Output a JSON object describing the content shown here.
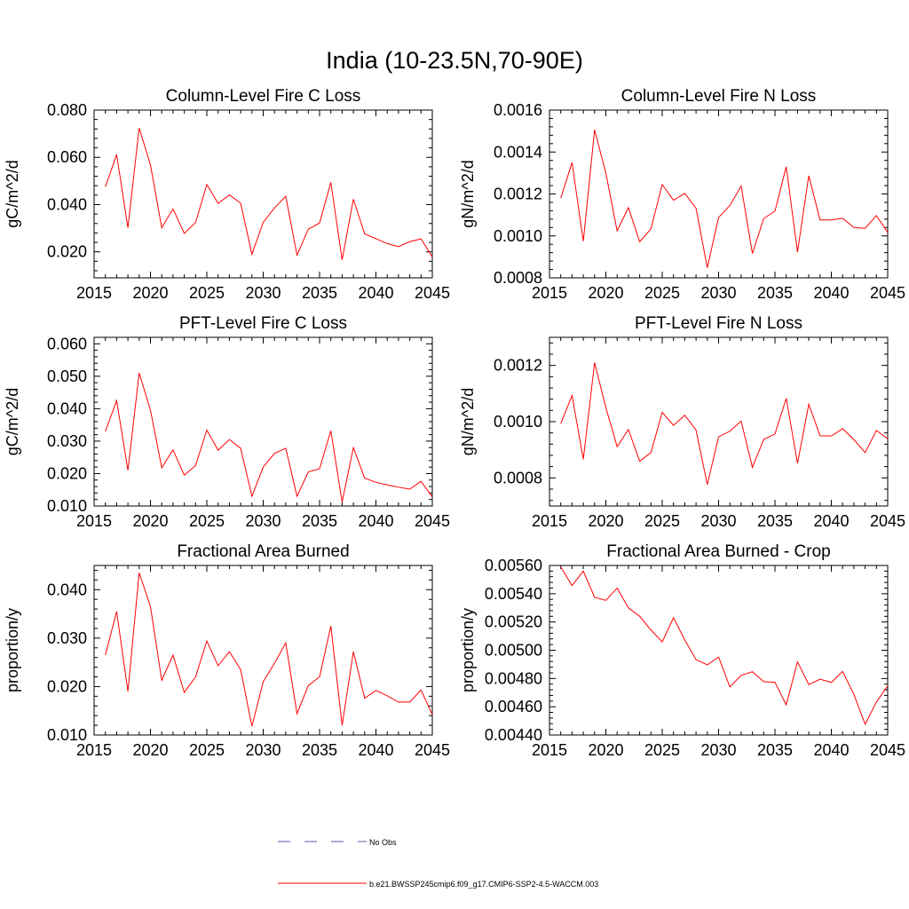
{
  "figure": {
    "title": "India (10-23.5N,70-90E)"
  },
  "legend": [
    {
      "label": "No Obs",
      "color": "#5a5aa8",
      "dash": true
    },
    {
      "label": "b.e21.BWSSP245cmip6.f09_g17.CMIP6-SSP2-4.5-WACCM.003",
      "color": "#ff0000",
      "dash": false
    }
  ],
  "chart_data": [
    {
      "type": "line",
      "title": "Column-Level Fire C Loss",
      "ylabel": "gC/m^2/d",
      "xlim": [
        2015,
        2045
      ],
      "ylim": [
        0.009,
        0.08
      ],
      "xticks": [
        "2015",
        "2020",
        "2025",
        "2030",
        "2035",
        "2040",
        "2045"
      ],
      "yticks": [
        "0.020",
        "0.040",
        "0.060",
        "0.080"
      ],
      "x": [
        2016,
        2017,
        2018,
        2019,
        2020,
        2021,
        2022,
        2023,
        2024,
        2025,
        2026,
        2027,
        2028,
        2029,
        2030,
        2031,
        2032,
        2033,
        2034,
        2035,
        2036,
        2037,
        2038,
        2039,
        2040,
        2041,
        2042,
        2043,
        2044,
        2045
      ],
      "series": [
        {
          "color": "#ff0000",
          "values": [
            0.0475,
            0.0612,
            0.0302,
            0.0724,
            0.0568,
            0.0302,
            0.0382,
            0.0278,
            0.0324,
            0.0485,
            0.0405,
            0.0441,
            0.0406,
            0.019,
            0.0325,
            0.0386,
            0.0435,
            0.0186,
            0.0296,
            0.0322,
            0.0494,
            0.0166,
            0.0423,
            0.0276,
            0.0256,
            0.0235,
            0.0222,
            0.0243,
            0.0255,
            0.0178
          ]
        }
      ]
    },
    {
      "type": "line",
      "title": "Column-Level Fire N Loss",
      "ylabel": "gN/m^2/d",
      "xlim": [
        2015,
        2045
      ],
      "ylim": [
        0.0008,
        0.0016
      ],
      "xticks": [
        "2015",
        "2020",
        "2025",
        "2030",
        "2035",
        "2040",
        "2045"
      ],
      "yticks": [
        "0.0008",
        "0.0010",
        "0.0012",
        "0.0014",
        "0.0016"
      ],
      "x": [
        2016,
        2017,
        2018,
        2019,
        2020,
        2021,
        2022,
        2023,
        2024,
        2025,
        2026,
        2027,
        2028,
        2029,
        2030,
        2031,
        2032,
        2033,
        2034,
        2035,
        2036,
        2037,
        2038,
        2039,
        2040,
        2041,
        2042,
        2043,
        2044,
        2045
      ],
      "series": [
        {
          "color": "#ff0000",
          "values": [
            0.00118,
            0.00135,
            0.000975,
            0.001506,
            0.0013,
            0.001024,
            0.001135,
            0.000972,
            0.001034,
            0.001245,
            0.00117,
            0.001203,
            0.001132,
            0.000848,
            0.001088,
            0.001145,
            0.001238,
            0.000916,
            0.001083,
            0.001118,
            0.00133,
            0.000923,
            0.001287,
            0.001076,
            0.001076,
            0.001084,
            0.00104,
            0.001036,
            0.001097,
            0.001016
          ]
        }
      ]
    },
    {
      "type": "line",
      "title": "PFT-Level Fire C Loss",
      "ylabel": "gC/m^2/d",
      "xlim": [
        2015,
        2045
      ],
      "ylim": [
        0.01,
        0.062
      ],
      "xticks": [
        "2015",
        "2020",
        "2025",
        "2030",
        "2035",
        "2040",
        "2045"
      ],
      "yticks": [
        "0.010",
        "0.020",
        "0.030",
        "0.040",
        "0.050",
        "0.060"
      ],
      "x": [
        2016,
        2017,
        2018,
        2019,
        2020,
        2021,
        2022,
        2023,
        2024,
        2025,
        2026,
        2027,
        2028,
        2029,
        2030,
        2031,
        2032,
        2033,
        2034,
        2035,
        2036,
        2037,
        2038,
        2039,
        2040,
        2041,
        2042,
        2043,
        2044,
        2045
      ],
      "series": [
        {
          "color": "#ff0000",
          "values": [
            0.033,
            0.0425,
            0.021,
            0.051,
            0.0395,
            0.0218,
            0.0273,
            0.0195,
            0.0225,
            0.0334,
            0.0272,
            0.0305,
            0.0278,
            0.013,
            0.022,
            0.0262,
            0.0278,
            0.013,
            0.0205,
            0.0215,
            0.0332,
            0.0112,
            0.028,
            0.0186,
            0.0173,
            0.0165,
            0.0158,
            0.0152,
            0.0176,
            0.0128
          ]
        }
      ]
    },
    {
      "type": "line",
      "title": "PFT-Level Fire N Loss",
      "ylabel": "gN/m^2/d",
      "xlim": [
        2015,
        2045
      ],
      "ylim": [
        0.0007,
        0.0013
      ],
      "xticks": [
        "2015",
        "2020",
        "2025",
        "2030",
        "2035",
        "2040",
        "2045"
      ],
      "yticks": [
        "0.0008",
        "0.0010",
        "0.0012"
      ],
      "x": [
        2016,
        2017,
        2018,
        2019,
        2020,
        2021,
        2022,
        2023,
        2024,
        2025,
        2026,
        2027,
        2028,
        2029,
        2030,
        2031,
        2032,
        2033,
        2034,
        2035,
        2036,
        2037,
        2038,
        2039,
        2040,
        2041,
        2042,
        2043,
        2044,
        2045
      ],
      "series": [
        {
          "color": "#ff0000",
          "values": [
            0.000993,
            0.001093,
            0.000866,
            0.00121,
            0.00105,
            0.000911,
            0.000972,
            0.000859,
            0.00089,
            0.001033,
            0.000987,
            0.001023,
            0.00097,
            0.000776,
            0.000946,
            0.000966,
            0.001002,
            0.000837,
            0.000937,
            0.000956,
            0.001083,
            0.000852,
            0.001062,
            0.00095,
            0.000949,
            0.000975,
            0.000936,
            0.00089,
            0.000969,
            0.000939
          ]
        }
      ]
    },
    {
      "type": "line",
      "title": "Fractional Area Burned",
      "ylabel": "proportion/y",
      "xlim": [
        2015,
        2045
      ],
      "ylim": [
        0.01,
        0.045
      ],
      "xticks": [
        "2015",
        "2020",
        "2025",
        "2030",
        "2035",
        "2040",
        "2045"
      ],
      "yticks": [
        "0.010",
        "0.020",
        "0.030",
        "0.040"
      ],
      "x": [
        2016,
        2017,
        2018,
        2019,
        2020,
        2021,
        2022,
        2023,
        2024,
        2025,
        2026,
        2027,
        2028,
        2029,
        2030,
        2031,
        2032,
        2033,
        2034,
        2035,
        2036,
        2037,
        2038,
        2039,
        2040,
        2041,
        2042,
        2043,
        2044,
        2045
      ],
      "series": [
        {
          "color": "#ff0000",
          "values": [
            0.0265,
            0.0355,
            0.019,
            0.0435,
            0.0365,
            0.0213,
            0.0265,
            0.0188,
            0.022,
            0.0294,
            0.0243,
            0.0272,
            0.0235,
            0.0118,
            0.021,
            0.0248,
            0.029,
            0.0144,
            0.0202,
            0.022,
            0.0325,
            0.012,
            0.0272,
            0.0176,
            0.0192,
            0.0181,
            0.0168,
            0.0168,
            0.0193,
            0.0142
          ]
        }
      ]
    },
    {
      "type": "line",
      "title": "Fractional Area Burned - Crop",
      "ylabel": "proportion/y",
      "xlim": [
        2015,
        2045
      ],
      "ylim": [
        0.0044,
        0.0056
      ],
      "xticks": [
        "2015",
        "2020",
        "2025",
        "2030",
        "2035",
        "2040",
        "2045"
      ],
      "yticks": [
        "0.00440",
        "0.00460",
        "0.00480",
        "0.00500",
        "0.00520",
        "0.00540",
        "0.00560"
      ],
      "x": [
        2016,
        2017,
        2018,
        2019,
        2020,
        2021,
        2022,
        2023,
        2024,
        2025,
        2026,
        2027,
        2028,
        2029,
        2030,
        2031,
        2032,
        2033,
        2034,
        2035,
        2036,
        2037,
        2038,
        2039,
        2040,
        2041,
        2042,
        2043,
        2044,
        2045
      ],
      "series": [
        {
          "color": "#ff0000",
          "values": [
            0.00559,
            0.005458,
            0.00556,
            0.005375,
            0.005353,
            0.00544,
            0.0053,
            0.00524,
            0.005143,
            0.00506,
            0.00523,
            0.005073,
            0.004933,
            0.004897,
            0.004952,
            0.00474,
            0.004822,
            0.004848,
            0.004778,
            0.004773,
            0.004613,
            0.004918,
            0.004757,
            0.004795,
            0.004772,
            0.00485,
            0.004688,
            0.004476,
            0.004633,
            0.004747
          ]
        }
      ]
    }
  ]
}
